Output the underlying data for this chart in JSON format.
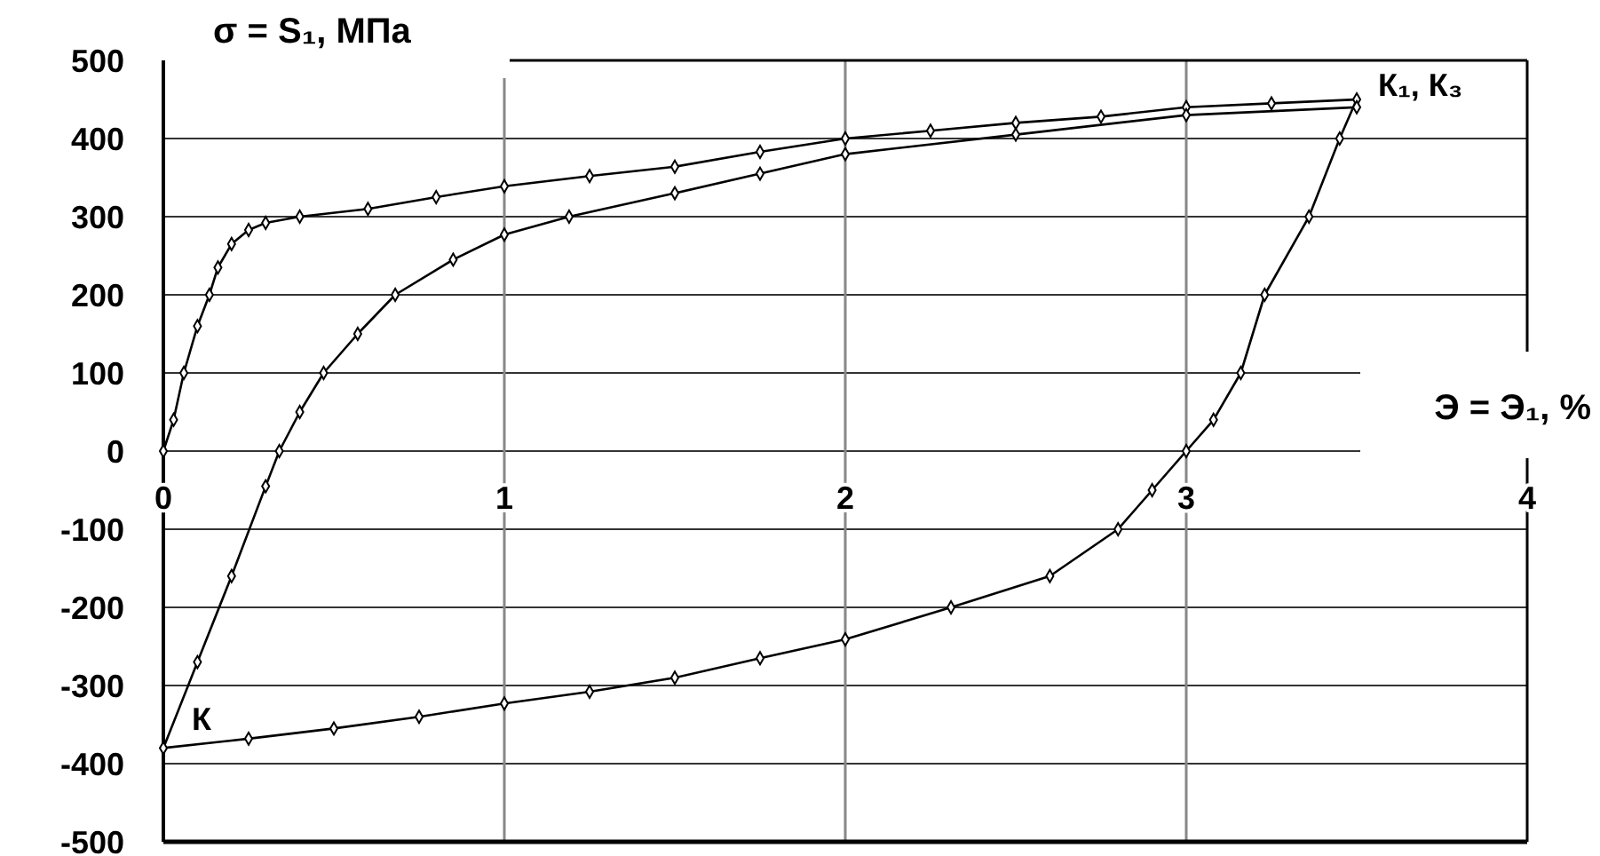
{
  "chart_data": {
    "type": "line",
    "xlabel": "Э = Э₁, %",
    "ylabel": "σ = S₁, МПа",
    "xlim": [
      0,
      4
    ],
    "xticks": [
      0,
      1,
      2,
      3,
      4
    ],
    "ylim": [
      -500,
      500
    ],
    "yticks": [
      500,
      400,
      300,
      200,
      100,
      0,
      -100,
      -200,
      -300,
      -400,
      -500
    ],
    "grid": true,
    "marker": "diamond",
    "line_style": "solid",
    "series": [
      {
        "color": "#000000",
        "x": [
          0,
          0.03,
          0.06,
          0.1,
          0.135,
          0.16,
          0.2,
          0.25,
          0.3,
          0.4,
          0.6,
          0.8,
          1,
          1.25,
          1.5,
          1.75,
          2,
          2.25,
          2.5,
          2.75,
          3,
          3.25,
          3.5,
          3.45,
          3.36,
          3.23,
          3.16,
          3.08,
          3,
          2.9,
          2.8,
          2.6,
          2.31,
          2,
          1.75,
          1.5,
          1.25,
          1,
          0.75,
          0.5,
          0.25,
          0,
          0.1,
          0.2,
          0.3,
          0.34,
          0.4,
          0.47,
          0.57,
          0.68,
          0.85,
          1,
          1.19,
          1.5,
          1.75,
          2,
          2.5,
          3,
          3.5
        ],
        "values": [
          0,
          40,
          100,
          160,
          200,
          235,
          265,
          283,
          292,
          300,
          310,
          325,
          339,
          352,
          364,
          383,
          400,
          410,
          420,
          428,
          440,
          445,
          450,
          400,
          300,
          200,
          100,
          40,
          0,
          -50,
          -100,
          -160,
          -200,
          -241,
          -265,
          -290,
          -308,
          -323,
          -340,
          -355,
          -368,
          -380,
          -270,
          -160,
          -45,
          0,
          50,
          100,
          150,
          200,
          245,
          277,
          300,
          330,
          355,
          380,
          405,
          430,
          440
        ]
      }
    ],
    "annotations": [
      {
        "text": "К₁, К₃",
        "x": 3.5,
        "y": 450
      },
      {
        "text": "К",
        "x": 0,
        "y": -380
      }
    ]
  }
}
